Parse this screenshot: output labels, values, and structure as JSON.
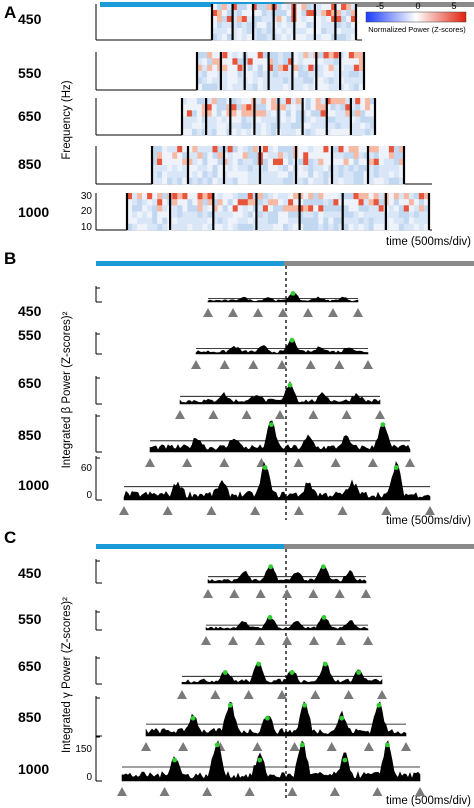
{
  "panels": [
    {
      "letter": "A",
      "ylabel": "Frequency (Hz)",
      "xlabel": "time (500ms/div)"
    },
    {
      "letter": "B",
      "ylabel": "Integrated β Power (Z-scores)²",
      "xlabel": "time (500ms/div)"
    },
    {
      "letter": "C",
      "ylabel": "Integrated γ Power (Z-scores)²",
      "xlabel": "time (500ms/div)"
    }
  ],
  "rows": [
    "450",
    "550",
    "650",
    "850",
    "1000"
  ],
  "colorbar": {
    "label": "Normalized Power (Z-scores)",
    "ticks": [
      "-5",
      "0",
      "5"
    ],
    "colors": [
      "#1a3cff",
      "#ffffff",
      "#e0200a"
    ]
  },
  "colors": {
    "baseline_bar": "#1a9bd7",
    "stim_bar": "#8a8a8a",
    "marker": "#7a7a7a",
    "peak": "#33cc33"
  },
  "chart_data": [
    {
      "type": "heatmap",
      "panel": "A",
      "xlabel": "time (500ms/div)",
      "ylabel": "Frequency (Hz)",
      "yticks": [
        "30",
        "20",
        "10"
      ],
      "ylim": [
        10,
        30
      ],
      "rows": [
        "450",
        "550",
        "650",
        "850",
        "1000"
      ],
      "colorbar_range": [
        -7,
        7
      ]
    },
    {
      "type": "area",
      "panel": "B",
      "xlabel": "time (500ms/div)",
      "ylabel": "Integrated β Power (Z-scores)²",
      "yticks_1000": [
        "60",
        "0"
      ],
      "rows": [
        "450",
        "550",
        "650",
        "850",
        "1000"
      ]
    },
    {
      "type": "area",
      "panel": "C",
      "xlabel": "time (500ms/div)",
      "ylabel": "Integrated γ Power (Z-scores)²",
      "yticks_1000": [
        "150",
        "0"
      ],
      "rows": [
        "450",
        "550",
        "650",
        "850",
        "1000"
      ]
    }
  ]
}
